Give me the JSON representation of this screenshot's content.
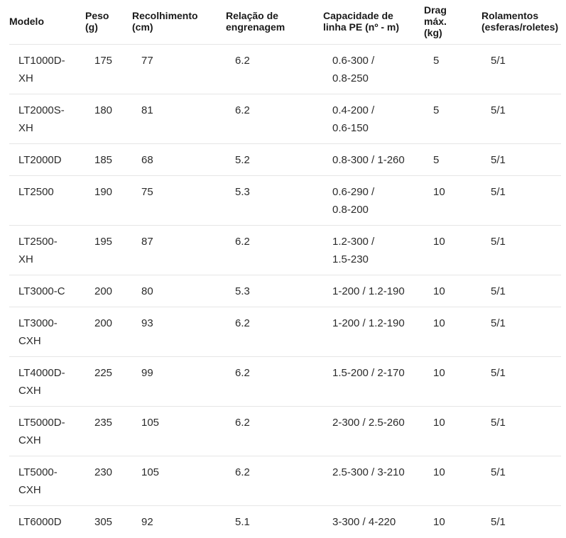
{
  "colors": {
    "divider": "#e6e6e6",
    "header_text": "#1a1a1a",
    "body_text": "#2b2b2b",
    "background": "#ffffff"
  },
  "table": {
    "columns": [
      {
        "key": "model",
        "label": "Modelo"
      },
      {
        "key": "weight",
        "label": "Peso\n(g)"
      },
      {
        "key": "recovery",
        "label": "Recolhimento\n(cm)"
      },
      {
        "key": "gear_ratio",
        "label": "Relação de\nengrenagem"
      },
      {
        "key": "line_capacity",
        "label": "Capacidade de\nlinha PE (nº - m)"
      },
      {
        "key": "drag",
        "label": "Drag\nmáx.\n(kg)"
      },
      {
        "key": "bearings",
        "label": "Rolamentos\n(esferas/roletes)"
      }
    ],
    "rows": [
      {
        "model": "LT1000D-\nXH",
        "weight": "175",
        "recovery": "77",
        "gear_ratio": "6.2",
        "line_capacity": "0.6-300 /\n0.8-250",
        "drag": "5",
        "bearings": "5/1"
      },
      {
        "model": "LT2000S-\nXH",
        "weight": "180",
        "recovery": "81",
        "gear_ratio": "6.2",
        "line_capacity": "0.4-200 /\n0.6-150",
        "drag": "5",
        "bearings": "5/1"
      },
      {
        "model": "LT2000D",
        "weight": "185",
        "recovery": "68",
        "gear_ratio": "5.2",
        "line_capacity": "0.8-300 / 1-260",
        "drag": "5",
        "bearings": "5/1"
      },
      {
        "model": "LT2500",
        "weight": "190",
        "recovery": "75",
        "gear_ratio": "5.3",
        "line_capacity": "0.6-290 /\n0.8-200",
        "drag": "10",
        "bearings": "5/1"
      },
      {
        "model": "LT2500-\nXH",
        "weight": "195",
        "recovery": "87",
        "gear_ratio": "6.2",
        "line_capacity": "1.2-300 /\n1.5-230",
        "drag": "10",
        "bearings": "5/1"
      },
      {
        "model": "LT3000-C",
        "weight": "200",
        "recovery": "80",
        "gear_ratio": "5.3",
        "line_capacity": "1-200 / 1.2-190",
        "drag": "10",
        "bearings": "5/1"
      },
      {
        "model": "LT3000-\nCXH",
        "weight": "200",
        "recovery": "93",
        "gear_ratio": "6.2",
        "line_capacity": "1-200 / 1.2-190",
        "drag": "10",
        "bearings": "5/1"
      },
      {
        "model": "LT4000D-\nCXH",
        "weight": "225",
        "recovery": "99",
        "gear_ratio": "6.2",
        "line_capacity": "1.5-200 / 2-170",
        "drag": "10",
        "bearings": "5/1"
      },
      {
        "model": "LT5000D-\nCXH",
        "weight": "235",
        "recovery": "105",
        "gear_ratio": "6.2",
        "line_capacity": "2-300 / 2.5-260",
        "drag": "10",
        "bearings": "5/1"
      },
      {
        "model": "LT5000-\nCXH",
        "weight": "230",
        "recovery": "105",
        "gear_ratio": "6.2",
        "line_capacity": "2.5-300 / 3-210",
        "drag": "10",
        "bearings": "5/1"
      },
      {
        "model": "LT6000D",
        "weight": "305",
        "recovery": "92",
        "gear_ratio": "5.1",
        "line_capacity": "3-300 / 4-220",
        "drag": "10",
        "bearings": "5/1"
      }
    ]
  }
}
